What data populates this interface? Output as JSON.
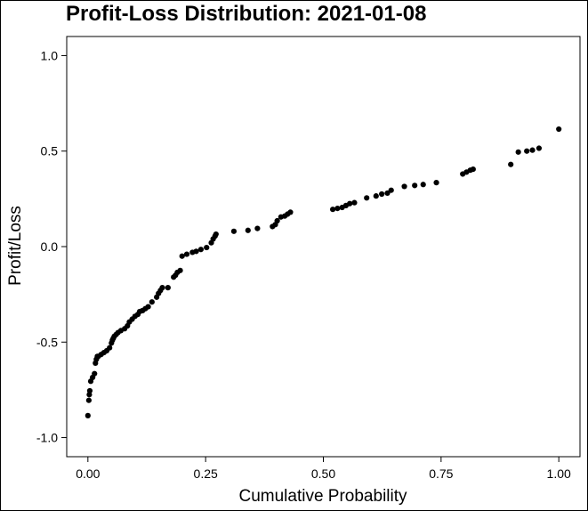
{
  "chart_data": {
    "type": "scatter",
    "title": "Profit-Loss Distribution: 2021-01-08",
    "xlabel": "Cumulative Probability",
    "ylabel": "Profit/Loss",
    "xlim": [
      -0.045,
      1.045
    ],
    "ylim": [
      -1.1,
      1.1
    ],
    "x_ticks": [
      0.0,
      0.25,
      0.5,
      0.75,
      1.0
    ],
    "x_tick_labels": [
      "0.00",
      "0.25",
      "0.50",
      "0.75",
      "1.00"
    ],
    "y_ticks": [
      -1.0,
      -0.5,
      0.0,
      0.5,
      1.0
    ],
    "y_tick_labels": [
      "-1.0",
      "-0.5",
      "0.0",
      "0.5",
      "1.0"
    ],
    "grid": false,
    "marker_color": "#000000",
    "series": [
      {
        "x": [
          0.0,
          0.002,
          0.003,
          0.004,
          0.006,
          0.01,
          0.014,
          0.016,
          0.018,
          0.02,
          0.022,
          0.028,
          0.034,
          0.04,
          0.046,
          0.05,
          0.052,
          0.054,
          0.056,
          0.06,
          0.064,
          0.07,
          0.078,
          0.084,
          0.088,
          0.094,
          0.1,
          0.106,
          0.11,
          0.116,
          0.122,
          0.128,
          0.136,
          0.146,
          0.15,
          0.154,
          0.158,
          0.17,
          0.182,
          0.186,
          0.19,
          0.196,
          0.2,
          0.21,
          0.222,
          0.23,
          0.24,
          0.252,
          0.262,
          0.266,
          0.27,
          0.272,
          0.31,
          0.34,
          0.36,
          0.392,
          0.398,
          0.402,
          0.41,
          0.418,
          0.424,
          0.43,
          0.52,
          0.53,
          0.54,
          0.548,
          0.556,
          0.566,
          0.592,
          0.612,
          0.624,
          0.636,
          0.644,
          0.672,
          0.694,
          0.712,
          0.74,
          0.796,
          0.804,
          0.812,
          0.818,
          0.898,
          0.914,
          0.932,
          0.944,
          0.958,
          1.0
        ],
        "y": [
          -0.885,
          -0.805,
          -0.775,
          -0.755,
          -0.705,
          -0.685,
          -0.665,
          -0.61,
          -0.59,
          -0.575,
          -0.575,
          -0.565,
          -0.555,
          -0.545,
          -0.53,
          -0.505,
          -0.49,
          -0.48,
          -0.47,
          -0.46,
          -0.45,
          -0.44,
          -0.43,
          -0.415,
          -0.395,
          -0.38,
          -0.365,
          -0.355,
          -0.34,
          -0.335,
          -0.325,
          -0.315,
          -0.29,
          -0.265,
          -0.245,
          -0.23,
          -0.215,
          -0.215,
          -0.16,
          -0.15,
          -0.135,
          -0.125,
          -0.05,
          -0.04,
          -0.03,
          -0.025,
          -0.015,
          -0.005,
          0.02,
          0.04,
          0.055,
          0.065,
          0.08,
          0.085,
          0.095,
          0.105,
          0.115,
          0.135,
          0.155,
          0.16,
          0.17,
          0.18,
          0.195,
          0.2,
          0.205,
          0.215,
          0.225,
          0.23,
          0.255,
          0.265,
          0.275,
          0.28,
          0.295,
          0.315,
          0.32,
          0.325,
          0.335,
          0.38,
          0.39,
          0.4,
          0.405,
          0.43,
          0.495,
          0.5,
          0.505,
          0.515,
          0.615
        ]
      }
    ]
  }
}
